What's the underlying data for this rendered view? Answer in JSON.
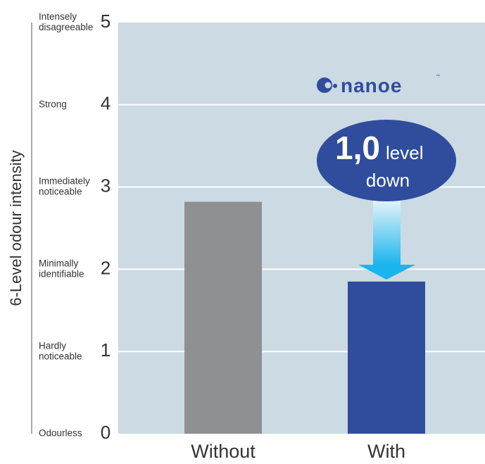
{
  "chart_data": {
    "type": "bar",
    "ylabel": "6-Level odour intensity",
    "ylim": [
      0,
      5
    ],
    "grid": true,
    "categories": [
      "Without",
      "With"
    ],
    "values": [
      2.82,
      1.85
    ],
    "bar_colors": [
      "#8f9094",
      "#2f4d9c"
    ],
    "y_ticks": [
      {
        "value": 0,
        "label": "0",
        "desc": [
          "Odourless"
        ]
      },
      {
        "value": 1,
        "label": "1",
        "desc": [
          "Hardly",
          "noticeable"
        ]
      },
      {
        "value": 2,
        "label": "2",
        "desc": [
          "Minimally",
          "identifiable"
        ]
      },
      {
        "value": 3,
        "label": "3",
        "desc": [
          "Immediately",
          "noticeable"
        ]
      },
      {
        "value": 4,
        "label": "4",
        "desc": [
          "Strong"
        ]
      },
      {
        "value": 5,
        "label": "5",
        "desc": [
          "Intensely",
          "disagreeable"
        ]
      }
    ],
    "annotation": {
      "value": "1,0",
      "unit": "level",
      "text": "down"
    },
    "brand": {
      "name": "nanoe",
      "mark": "™"
    }
  },
  "colors": {
    "plot_background": "#cbdae3",
    "grid": "#ffffff",
    "callout": "#2f4d9c",
    "arrow_top": "#e6f4fb",
    "arrow_bottom": "#1ab5ec"
  }
}
